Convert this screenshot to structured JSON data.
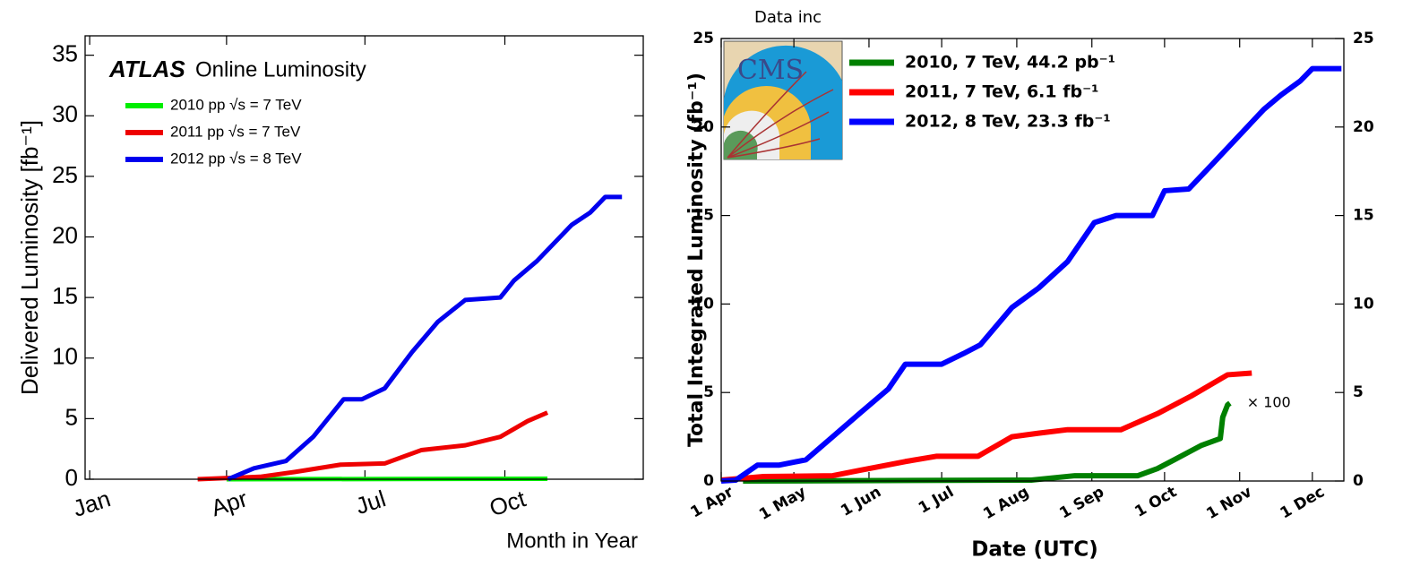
{
  "chart_data": [
    {
      "type": "line",
      "experiment": "ATLAS",
      "title": "Online Luminosity",
      "ylabel": "Delivered Luminosity [fb⁻¹]",
      "xlabel": "Month in Year",
      "xlim": [
        -2,
        365
      ],
      "ylim": [
        0,
        36.6
      ],
      "xticks": [
        {
          "value": 1,
          "label": "Jan"
        },
        {
          "value": 91,
          "label": "Apr"
        },
        {
          "value": 182,
          "label": "Jul"
        },
        {
          "value": 274,
          "label": "Oct"
        }
      ],
      "yticks": [
        0,
        5,
        10,
        15,
        20,
        25,
        30,
        35
      ],
      "legend": "upper left",
      "series": [
        {
          "name": "2010 pp √s = 7 TeV",
          "color": "#00ee00",
          "x": [
            91,
            200,
            302
          ],
          "values": [
            0,
            0.02,
            0.04
          ]
        },
        {
          "name": "2011 pp √s = 7 TeV",
          "color": "#ee0000",
          "x": [
            72,
            113,
            136,
            166,
            195,
            219,
            248,
            271,
            289,
            302
          ],
          "values": [
            0,
            0.2,
            0.6,
            1.2,
            1.3,
            2.4,
            2.8,
            3.5,
            4.8,
            5.5
          ]
        },
        {
          "name": "2012 pp √s = 8 TeV",
          "color": "#0000ee",
          "x": [
            92,
            109,
            130,
            148,
            168,
            180,
            195,
            213,
            230,
            248,
            271,
            280,
            295,
            318,
            330,
            340,
            351
          ],
          "values": [
            0,
            0.9,
            1.5,
            3.5,
            6.6,
            6.6,
            7.5,
            10.5,
            13,
            14.8,
            15,
            16.4,
            18,
            21,
            22,
            23.3,
            23.3
          ]
        }
      ]
    },
    {
      "type": "line",
      "subtitle": "Data inc",
      "logo_text": "CMS",
      "ylabel": "Total Integrated Luminosity (fb⁻¹)",
      "xlabel": "Date (UTC)",
      "xlim": [
        0,
        257
      ],
      "ylim": [
        0,
        25
      ],
      "y2lim": [
        0,
        25
      ],
      "xticks": [
        {
          "value": 0,
          "label": "1 Apr"
        },
        {
          "value": 30,
          "label": "1 May"
        },
        {
          "value": 61,
          "label": "1 Jun"
        },
        {
          "value": 91,
          "label": "1 Jul"
        },
        {
          "value": 122,
          "label": "1 Aug"
        },
        {
          "value": 153,
          "label": "1 Sep"
        },
        {
          "value": 183,
          "label": "1 Oct"
        },
        {
          "value": 214,
          "label": "1 Nov"
        },
        {
          "value": 244,
          "label": "1 Dec"
        }
      ],
      "yticks": [
        0,
        5,
        10,
        15,
        20,
        25
      ],
      "y2ticks": [
        0,
        5,
        10,
        15,
        20,
        25
      ],
      "legend": "upper left",
      "annotation": "× 100",
      "series": [
        {
          "name": "2010, 7 TeV, 44.2 pb⁻¹",
          "color": "#008000",
          "x": [
            9,
            128,
            146,
            172,
            180,
            187,
            198,
            206,
            207,
            209,
            210
          ],
          "values": [
            0,
            0.05,
            0.3,
            0.3,
            0.7,
            1.2,
            2.0,
            2.4,
            3.6,
            4.3,
            4.4
          ]
        },
        {
          "name": "2011, 7 TeV, 6.1 fb⁻¹",
          "color": "#ff0000",
          "x": [
            0,
            17,
            46,
            57,
            76,
            89,
            106,
            120,
            131,
            143,
            165,
            180,
            194,
            209,
            219
          ],
          "values": [
            0.05,
            0.25,
            0.3,
            0.6,
            1.1,
            1.4,
            1.4,
            2.5,
            2.7,
            2.9,
            2.9,
            3.8,
            4.8,
            6.0,
            6.1
          ]
        },
        {
          "name": "2012, 8 TeV, 23.3 fb⁻¹",
          "color": "#0000ff",
          "x": [
            0,
            6,
            15,
            24,
            35,
            46,
            57,
            69,
            76,
            91,
            100,
            107,
            120,
            131,
            143,
            154,
            163,
            178,
            183,
            193,
            202,
            213,
            224,
            231,
            239,
            244,
            256
          ],
          "values": [
            0,
            0.05,
            0.9,
            0.9,
            1.2,
            2.5,
            3.8,
            5.2,
            6.6,
            6.6,
            7.2,
            7.7,
            9.8,
            10.9,
            12.4,
            14.6,
            15.0,
            15.0,
            16.4,
            16.5,
            17.8,
            19.4,
            21.0,
            21.8,
            22.6,
            23.3,
            23.3
          ]
        }
      ]
    }
  ]
}
